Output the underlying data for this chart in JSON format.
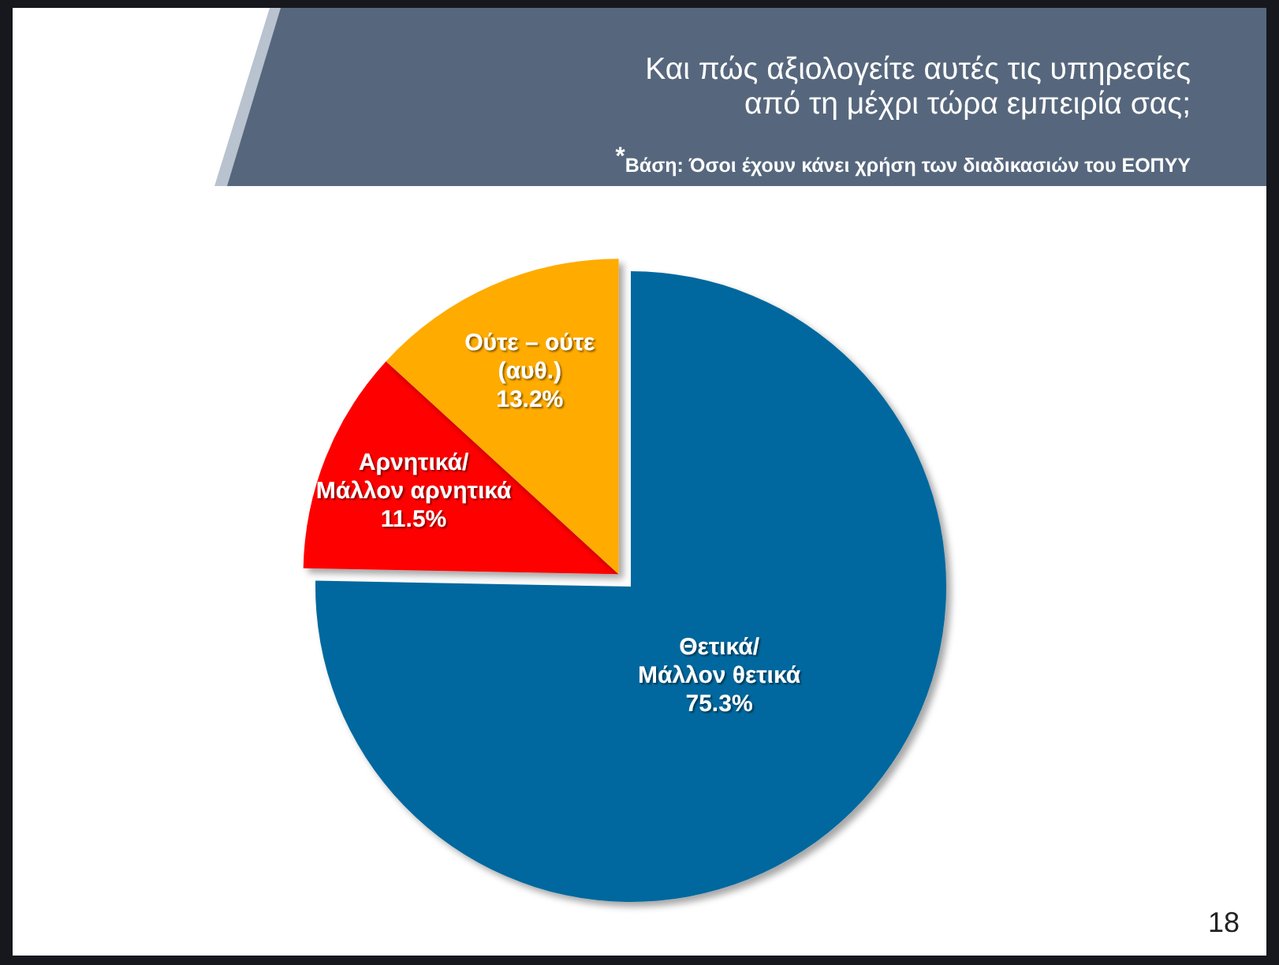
{
  "chart_data": {
    "type": "pie",
    "title": "Και πώς αξιολογείτε αυτές τις υπηρεσίες\nαπό τη μέχρι τώρα εμπειρία σας;",
    "subtitle": "$^{*}$Βάση: Όσοι έχουν κάνει χρήση των διαδικασιών του ΕΟΠΥΥ",
    "categories": [
      "Θετικά/\nΜάλλον θετικά",
      "Αρνητικά/\nΜάλλον αρνητικά",
      "Ούτε – ούτε\n(αυθ.)"
    ],
    "values": [
      75.3,
      11.5,
      13.2
    ],
    "colors": [
      "#02679e",
      "#ff0000",
      "#ffab00"
    ],
    "value_labels": [
      "75.3%",
      "11.5%",
      "13.2%"
    ],
    "annotations": [
      "18"
    ]
  }
}
